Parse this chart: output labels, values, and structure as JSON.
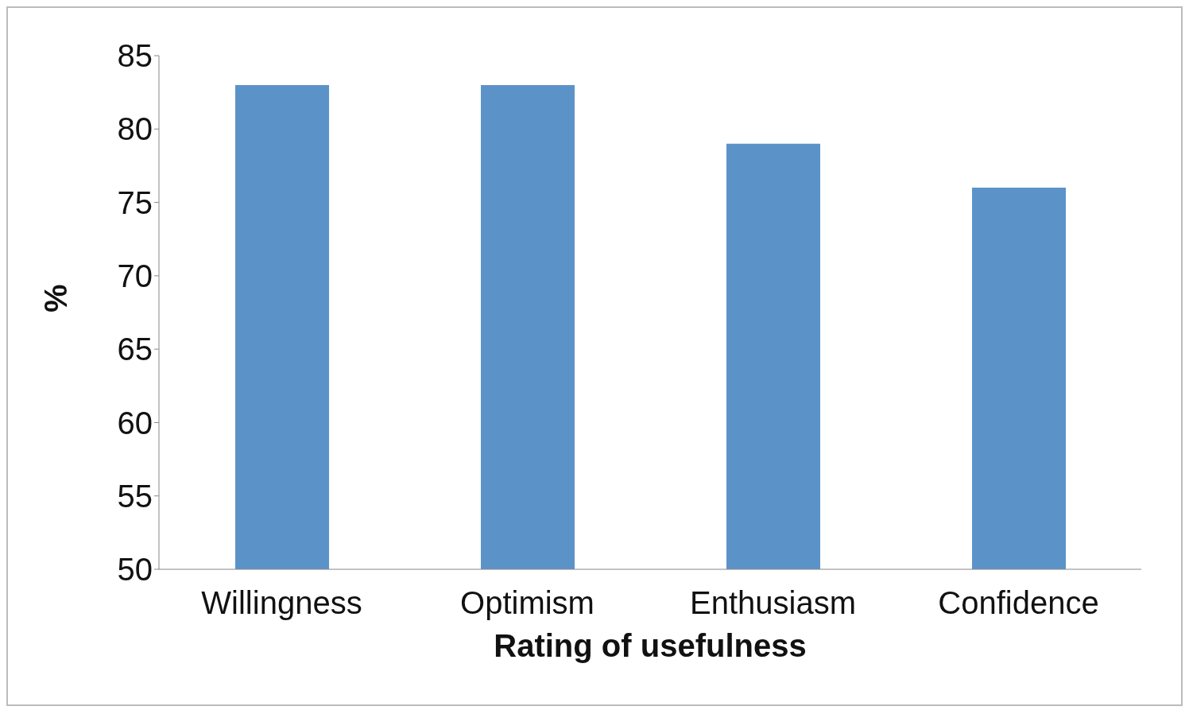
{
  "chart_data": {
    "type": "bar",
    "xlabel": "Rating of usefulness",
    "ylabel": "%",
    "categories": [
      "Willingness",
      "Optimism",
      "Enthusiasm",
      "Confidence"
    ],
    "values": [
      83,
      83,
      79,
      76
    ],
    "color": "#5b93c9",
    "ylim": [
      50,
      85
    ],
    "yticks": [
      50,
      55,
      60,
      65,
      70,
      75,
      80,
      85
    ],
    "grid": false,
    "legend": false
  }
}
